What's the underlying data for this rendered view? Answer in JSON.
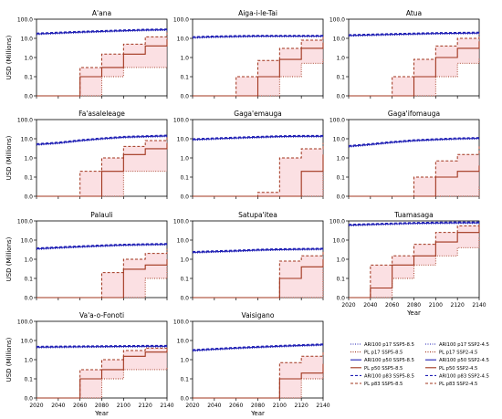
{
  "chart_data": {
    "type": "line",
    "ylabel": "USD (Millions)",
    "xlabel": "Year",
    "y_scale": "symlog",
    "ylim": [
      0,
      100
    ],
    "xlim": [
      2020,
      2140
    ],
    "x_ticks": [
      2020,
      2040,
      2060,
      2080,
      2100,
      2120,
      2140
    ],
    "y_ticks": [
      0.0,
      0.1,
      1.0,
      10.0,
      100.0
    ],
    "y_tick_labels": [
      "0.0",
      "0.1",
      "1.0",
      "10.0",
      "100.0"
    ],
    "colors": {
      "ari100": "#1f1fb4",
      "pl": "#a0341c",
      "pl_fill": "#f7c6cc"
    },
    "panels": [
      {
        "name": "A'ana",
        "ari": [
          17,
          19,
          21,
          23,
          25,
          27,
          28
        ],
        "pl_p50_ssp5": [
          0,
          0,
          0.1,
          0.3,
          1.5,
          4,
          9
        ],
        "pl_p17_ssp5": [
          0,
          0,
          0,
          0.1,
          0.3,
          0.3,
          0.3
        ],
        "pl_p83_ssp5": [
          0,
          0,
          0.3,
          1.5,
          5,
          12,
          20
        ]
      },
      {
        "name": "Aiga-i-le-Tai",
        "ari": [
          11,
          12,
          12.5,
          13,
          13,
          13,
          13
        ],
        "pl_p50_ssp5": [
          0,
          0,
          0,
          0.1,
          0.8,
          3,
          6
        ],
        "pl_p17_ssp5": [
          0,
          0,
          0,
          0,
          0.1,
          0.5,
          0.8
        ],
        "pl_p83_ssp5": [
          0,
          0,
          0.1,
          0.7,
          3,
          8,
          14
        ]
      },
      {
        "name": "Atua",
        "ari": [
          14,
          15,
          16,
          17,
          18,
          18.5,
          19
        ],
        "pl_p50_ssp5": [
          0,
          0,
          0,
          0.1,
          1,
          3,
          7
        ],
        "pl_p17_ssp5": [
          0,
          0,
          0,
          0,
          0.1,
          0.5,
          1
        ],
        "pl_p83_ssp5": [
          0,
          0,
          0.1,
          0.8,
          4,
          10,
          18
        ]
      },
      {
        "name": "Fa'asaleleage",
        "ari": [
          5,
          6,
          8,
          10,
          12,
          13,
          14
        ],
        "pl_p50_ssp5": [
          0,
          0,
          0,
          0.2,
          1.5,
          3,
          6
        ],
        "pl_p17_ssp5": [
          0,
          0,
          0,
          0,
          0.2,
          0.2,
          0.2
        ],
        "pl_p83_ssp5": [
          0,
          0,
          0.2,
          1,
          4,
          8,
          12
        ]
      },
      {
        "name": "Gaga'emauga",
        "ari": [
          9,
          10,
          11,
          12,
          13,
          13.5,
          13.5
        ],
        "pl_p50_ssp5": [
          0,
          0,
          0,
          0,
          0,
          0.2,
          1.5
        ],
        "pl_p17_ssp5": [
          0,
          0,
          0,
          0,
          0,
          0,
          0.3
        ],
        "pl_p83_ssp5": [
          0,
          0,
          0,
          0.02,
          1,
          3,
          6
        ]
      },
      {
        "name": "Gaga'ifomauga",
        "ari": [
          4,
          5,
          6.5,
          8,
          9,
          10,
          10.5
        ],
        "pl_p50_ssp5": [
          0,
          0,
          0,
          0,
          0.1,
          0.2,
          0.4
        ],
        "pl_p17_ssp5": [
          0,
          0,
          0,
          0,
          0,
          0,
          0.05
        ],
        "pl_p83_ssp5": [
          0,
          0,
          0,
          0.1,
          0.7,
          1.5,
          4
        ]
      },
      {
        "name": "Palauli",
        "ari": [
          3.5,
          4,
          4.5,
          5,
          5.5,
          5.8,
          6
        ],
        "pl_p50_ssp5": [
          0,
          0,
          0,
          0,
          0.3,
          0.5,
          1
        ],
        "pl_p17_ssp5": [
          0,
          0,
          0,
          0,
          0,
          0.1,
          0.4
        ],
        "pl_p83_ssp5": [
          0,
          0,
          0,
          0.2,
          1,
          2,
          3.5
        ]
      },
      {
        "name": "Satupa'itea",
        "ari": [
          2.3,
          2.5,
          2.7,
          3,
          3.2,
          3.3,
          3.4
        ],
        "pl_p50_ssp5": [
          0,
          0,
          0,
          0,
          0.1,
          0.4,
          1
        ],
        "pl_p17_ssp5": [
          0,
          0,
          0,
          0,
          0,
          0,
          0.3
        ],
        "pl_p83_ssp5": [
          0,
          0,
          0,
          0,
          0.8,
          1.5,
          3
        ]
      },
      {
        "name": "Tuamasaga",
        "ari": [
          60,
          65,
          70,
          75,
          78,
          80,
          80
        ],
        "pl_p50_ssp5": [
          0,
          0.05,
          0.5,
          1.5,
          8,
          25,
          60
        ],
        "pl_p17_ssp5": [
          0,
          0,
          0.1,
          0.5,
          1.5,
          4,
          15
        ],
        "pl_p83_ssp5": [
          0,
          0.5,
          1.5,
          6,
          25,
          55,
          80
        ]
      },
      {
        "name": "Va'a-o-Fonoti",
        "ari": [
          4.5,
          4.6,
          4.7,
          4.8,
          4.9,
          5,
          5
        ],
        "pl_p50_ssp5": [
          0,
          0,
          0.1,
          0.3,
          1.5,
          2.5,
          3.5
        ],
        "pl_p17_ssp5": [
          0,
          0,
          0,
          0.1,
          0.3,
          0.3,
          0.4
        ],
        "pl_p83_ssp5": [
          0,
          0,
          0.3,
          1,
          3,
          4,
          5
        ]
      },
      {
        "name": "Vaisigano",
        "ari": [
          3,
          3.5,
          4,
          4.5,
          5,
          5.5,
          6
        ],
        "pl_p50_ssp5": [
          0,
          0,
          0,
          0,
          0.1,
          0.2,
          0.6
        ],
        "pl_p17_ssp5": [
          0,
          0,
          0,
          0,
          0,
          0.1,
          0.2
        ],
        "pl_p83_ssp5": [
          0,
          0,
          0,
          0,
          0.7,
          1.5,
          2.5
        ]
      }
    ],
    "legend": [
      "ARI100 p17 SSP5-8.5",
      "PL p17 SSP5-8.5",
      "ARI100 p50 SSP5-8.5",
      "PL p50 SSP5-8.5",
      "ARI100 p83 SSP5-8.5",
      "PL p83 SSP5-8.5",
      "ARI100 p17 SSP2-4.5",
      "PL p17 SSP2-4.5",
      "ARI100 p50 SSP2-4.5",
      "PL p50 SSP2-4.5",
      "ARI100 p83 SSP2-4.5",
      "PL p83 SSP2-4.5"
    ]
  }
}
